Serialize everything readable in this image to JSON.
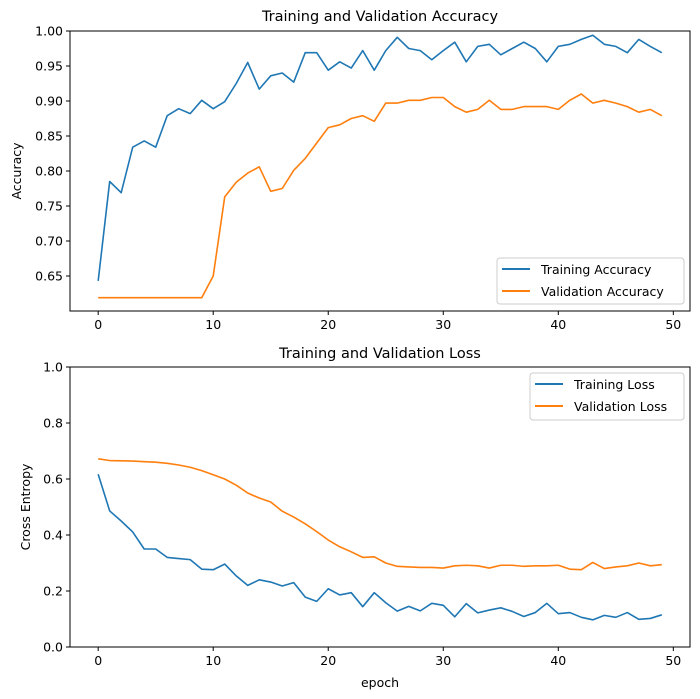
{
  "chart_data": [
    {
      "type": "line",
      "title": "Training and Validation Accuracy",
      "xlabel": "",
      "ylabel": "Accuracy",
      "xlim": [
        -2.45,
        51.45
      ],
      "ylim": [
        0.6,
        1.0
      ],
      "xticks": [
        0,
        10,
        20,
        30,
        40,
        50
      ],
      "yticks": [
        0.65,
        0.7,
        0.75,
        0.8,
        0.85,
        0.9,
        0.95,
        1.0
      ],
      "ytick_labels": [
        "0.65",
        "0.70",
        "0.75",
        "0.80",
        "0.85",
        "0.90",
        "0.95",
        "1.00"
      ],
      "legend_position": "lower-right",
      "grid": false,
      "series": [
        {
          "name": "Training Accuracy",
          "color": "#1f77b4",
          "values": [
            0.643,
            0.785,
            0.769,
            0.834,
            0.843,
            0.834,
            0.879,
            0.889,
            0.882,
            0.901,
            0.889,
            0.899,
            0.925,
            0.955,
            0.917,
            0.936,
            0.94,
            0.927,
            0.969,
            0.969,
            0.944,
            0.956,
            0.947,
            0.972,
            0.944,
            0.972,
            0.991,
            0.975,
            0.972,
            0.959,
            0.972,
            0.984,
            0.956,
            0.978,
            0.981,
            0.966,
            0.975,
            0.984,
            0.975,
            0.956,
            0.978,
            0.981,
            0.988,
            0.994,
            0.981,
            0.978,
            0.969,
            0.988,
            0.978,
            0.969
          ]
        },
        {
          "name": "Validation Accuracy",
          "color": "#ff7f0e",
          "values": [
            0.619,
            0.619,
            0.619,
            0.619,
            0.619,
            0.619,
            0.619,
            0.619,
            0.619,
            0.619,
            0.65,
            0.763,
            0.784,
            0.797,
            0.806,
            0.771,
            0.775,
            0.801,
            0.818,
            0.84,
            0.862,
            0.866,
            0.875,
            0.879,
            0.871,
            0.897,
            0.897,
            0.901,
            0.901,
            0.905,
            0.905,
            0.892,
            0.884,
            0.888,
            0.901,
            0.888,
            0.888,
            0.892,
            0.892,
            0.892,
            0.888,
            0.901,
            0.91,
            0.897,
            0.901,
            0.897,
            0.892,
            0.884,
            0.888,
            0.879
          ]
        }
      ]
    },
    {
      "type": "line",
      "title": "Training and Validation Loss",
      "xlabel": "epoch",
      "ylabel": "Cross Entropy",
      "xlim": [
        -2.45,
        51.45
      ],
      "ylim": [
        0.0,
        1.0
      ],
      "xticks": [
        0,
        10,
        20,
        30,
        40,
        50
      ],
      "yticks": [
        0.0,
        0.2,
        0.4,
        0.6,
        0.8,
        1.0
      ],
      "ytick_labels": [
        "0.0",
        "0.2",
        "0.4",
        "0.6",
        "0.8",
        "1.0"
      ],
      "legend_position": "upper-right",
      "grid": false,
      "series": [
        {
          "name": "Training Loss",
          "color": "#1f77b4",
          "values": [
            0.617,
            0.486,
            0.45,
            0.411,
            0.35,
            0.35,
            0.32,
            0.316,
            0.312,
            0.278,
            0.276,
            0.296,
            0.254,
            0.22,
            0.24,
            0.232,
            0.218,
            0.23,
            0.178,
            0.163,
            0.208,
            0.186,
            0.194,
            0.144,
            0.194,
            0.158,
            0.128,
            0.145,
            0.129,
            0.156,
            0.149,
            0.108,
            0.155,
            0.122,
            0.132,
            0.14,
            0.127,
            0.109,
            0.123,
            0.156,
            0.119,
            0.123,
            0.106,
            0.097,
            0.113,
            0.106,
            0.123,
            0.099,
            0.102,
            0.115
          ]
        },
        {
          "name": "Validation Loss",
          "color": "#ff7f0e",
          "values": [
            0.672,
            0.666,
            0.665,
            0.664,
            0.662,
            0.66,
            0.656,
            0.65,
            0.642,
            0.63,
            0.615,
            0.6,
            0.578,
            0.55,
            0.532,
            0.518,
            0.485,
            0.464,
            0.44,
            0.412,
            0.382,
            0.358,
            0.34,
            0.32,
            0.322,
            0.3,
            0.288,
            0.286,
            0.284,
            0.284,
            0.282,
            0.29,
            0.292,
            0.29,
            0.282,
            0.292,
            0.292,
            0.288,
            0.29,
            0.29,
            0.292,
            0.278,
            0.276,
            0.302,
            0.28,
            0.286,
            0.29,
            0.3,
            0.29,
            0.294
          ]
        }
      ]
    }
  ]
}
